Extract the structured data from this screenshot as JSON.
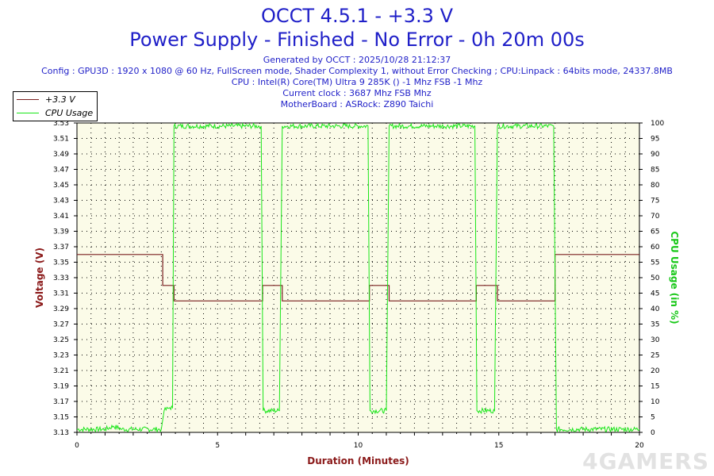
{
  "header": {
    "title_line1": "OCCT 4.5.1 - +3.3 V",
    "title_line2": "Power Supply - Finished - No Error - 0h 20m 00s",
    "info_lines": [
      "Generated by OCCT : 2025/10/28 21:12:37",
      "Config : GPU3D : 1920 x 1080 @ 60 Hz, FullScreen mode, Shader Complexity 1, without Error Checking ; CPU:Linpack : 64bits mode, 24337.8MB",
      "CPU : Intel(R) Core(TM) Ultra 9 285K () -1 Mhz FSB -1 Mhz",
      "Current clock : 3687 Mhz FSB  Mhz",
      "MotherBoard : ASRock: Z890 Taichi"
    ]
  },
  "watermark": "4GAMERS",
  "colors": {
    "title": "#1f1fc8",
    "voltage": "#7a1f1f",
    "cpu": "#19e619",
    "plot_bg": "#fbfbe8",
    "axis_label": "#8b1a1a"
  },
  "chart_data": {
    "type": "line",
    "xlabel": "Duration (Minutes)",
    "ylabel_left": "Voltage (V)",
    "ylabel_right": "CPU Usage (in %)",
    "xlim": [
      0,
      20
    ],
    "ylim_left": [
      3.13,
      3.53
    ],
    "ylim_right": [
      0,
      100
    ],
    "x_ticks": [
      0,
      5,
      10,
      15,
      20
    ],
    "y_left_ticks": [
      "3.13",
      "3.15",
      "3.17",
      "3.19",
      "3.21",
      "3.23",
      "3.25",
      "3.27",
      "3.29",
      "3.31",
      "3.33",
      "3.35",
      "3.37",
      "3.39",
      "3.41",
      "3.43",
      "3.45",
      "3.47",
      "3.49",
      "3.51",
      "3.53"
    ],
    "y_right_ticks": [
      0,
      5,
      10,
      15,
      20,
      25,
      30,
      35,
      40,
      45,
      50,
      55,
      60,
      65,
      70,
      75,
      80,
      85,
      90,
      95,
      100
    ],
    "grid": true,
    "legend": "top-left",
    "series": [
      {
        "name": "+3.3 V",
        "axis": "left",
        "step": true,
        "points": [
          [
            0,
            3.36
          ],
          [
            3.05,
            3.36
          ],
          [
            3.05,
            3.32
          ],
          [
            3.45,
            3.32
          ],
          [
            3.45,
            3.3
          ],
          [
            6.6,
            3.3
          ],
          [
            6.6,
            3.32
          ],
          [
            7.3,
            3.32
          ],
          [
            7.3,
            3.3
          ],
          [
            10.4,
            3.3
          ],
          [
            10.4,
            3.32
          ],
          [
            11.1,
            3.32
          ],
          [
            11.1,
            3.3
          ],
          [
            14.2,
            3.3
          ],
          [
            14.2,
            3.32
          ],
          [
            14.95,
            3.32
          ],
          [
            14.95,
            3.3
          ],
          [
            17.0,
            3.3
          ],
          [
            17.0,
            3.36
          ],
          [
            20,
            3.36
          ]
        ]
      },
      {
        "name": "CPU Usage",
        "axis": "right",
        "points": [
          [
            0,
            1
          ],
          [
            1.0,
            1
          ],
          [
            1.3,
            2
          ],
          [
            1.6,
            1
          ],
          [
            3.0,
            1
          ],
          [
            3.1,
            7
          ],
          [
            3.3,
            8
          ],
          [
            3.4,
            8
          ],
          [
            3.45,
            99
          ],
          [
            6.55,
            99
          ],
          [
            6.62,
            7
          ],
          [
            7.2,
            7
          ],
          [
            7.3,
            99
          ],
          [
            10.35,
            99
          ],
          [
            10.42,
            7
          ],
          [
            11.0,
            7
          ],
          [
            11.1,
            99
          ],
          [
            14.15,
            99
          ],
          [
            14.22,
            7
          ],
          [
            14.85,
            7
          ],
          [
            14.95,
            99
          ],
          [
            16.95,
            99
          ],
          [
            17.05,
            1
          ],
          [
            20,
            1
          ]
        ]
      }
    ]
  }
}
